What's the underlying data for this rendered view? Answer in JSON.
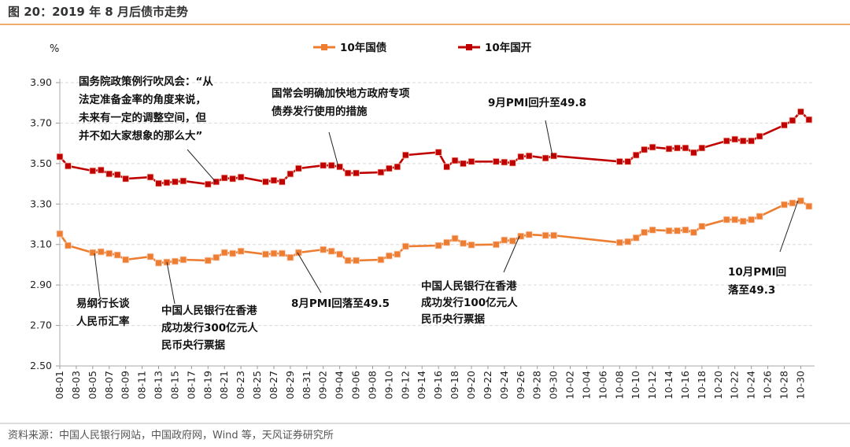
{
  "title": "图 20：2019 年 8 月后债市走势",
  "source": "资料来源：中国人民银行网站，中国政府网，Wind 等，天风证券研究所",
  "colors": {
    "accent": "#e8913f",
    "govt_10y": "#ed7d31",
    "cdb_10y": "#c00000"
  },
  "chart_data": {
    "type": "line",
    "ylabel": "%",
    "ylim": [
      2.5,
      3.9
    ],
    "yticks": [
      "2.50",
      "2.70",
      "2.90",
      "3.10",
      "3.30",
      "3.50",
      "3.70",
      "3.90"
    ],
    "grid": "horizontal dashed",
    "legend_position": "top-center",
    "xticks": [
      "08-01",
      "08-03",
      "08-05",
      "08-07",
      "08-09",
      "08-11",
      "08-13",
      "08-15",
      "08-17",
      "08-19",
      "08-21",
      "08-23",
      "08-25",
      "08-27",
      "08-29",
      "08-31",
      "09-02",
      "09-04",
      "09-06",
      "09-08",
      "09-10",
      "09-12",
      "09-14",
      "09-16",
      "09-18",
      "09-20",
      "09-22",
      "09-24",
      "09-26",
      "09-28",
      "09-30",
      "10-02",
      "10-04",
      "10-06",
      "10-08",
      "10-10",
      "10-12",
      "10-14",
      "10-16",
      "10-18",
      "10-20",
      "10-22",
      "10-24",
      "10-26",
      "10-28",
      "10-30"
    ],
    "x": [
      "08-01",
      "08-02",
      "08-05",
      "08-06",
      "08-07",
      "08-08",
      "08-09",
      "08-12",
      "08-13",
      "08-14",
      "08-15",
      "08-16",
      "08-19",
      "08-20",
      "08-21",
      "08-22",
      "08-23",
      "08-26",
      "08-27",
      "08-28",
      "08-29",
      "08-30",
      "09-02",
      "09-03",
      "09-04",
      "09-05",
      "09-06",
      "09-09",
      "09-10",
      "09-11",
      "09-12",
      "09-16",
      "09-17",
      "09-18",
      "09-19",
      "09-20",
      "09-23",
      "09-24",
      "09-25",
      "09-26",
      "09-27",
      "09-29",
      "09-30",
      "10-08",
      "10-09",
      "10-10",
      "10-11",
      "10-12",
      "10-14",
      "10-15",
      "10-16",
      "10-17",
      "10-18",
      "10-21",
      "10-22",
      "10-23",
      "10-24",
      "10-25",
      "10-28",
      "10-29",
      "10-30",
      "10-31"
    ],
    "series": [
      {
        "name": "10年国债",
        "values": [
          3.153,
          3.095,
          3.06,
          3.064,
          3.056,
          3.048,
          3.025,
          3.04,
          3.009,
          3.013,
          3.017,
          3.025,
          3.021,
          3.036,
          3.06,
          3.056,
          3.067,
          3.052,
          3.056,
          3.056,
          3.036,
          3.06,
          3.075,
          3.067,
          3.052,
          3.021,
          3.021,
          3.025,
          3.044,
          3.052,
          3.091,
          3.095,
          3.11,
          3.13,
          3.106,
          3.098,
          3.1,
          3.122,
          3.118,
          3.141,
          3.149,
          3.145,
          3.145,
          3.11,
          3.114,
          3.133,
          3.16,
          3.172,
          3.168,
          3.168,
          3.172,
          3.16,
          3.19,
          3.223,
          3.223,
          3.215,
          3.223,
          3.239,
          3.297,
          3.305,
          3.316,
          3.289
        ]
      },
      {
        "name": "10年国开",
        "values": [
          3.534,
          3.488,
          3.464,
          3.468,
          3.449,
          3.445,
          3.425,
          3.433,
          3.402,
          3.406,
          3.41,
          3.414,
          3.398,
          3.41,
          3.429,
          3.425,
          3.433,
          3.41,
          3.417,
          3.41,
          3.449,
          3.476,
          3.491,
          3.491,
          3.484,
          3.453,
          3.453,
          3.457,
          3.476,
          3.484,
          3.542,
          3.556,
          3.484,
          3.515,
          3.5,
          3.51,
          3.51,
          3.507,
          3.503,
          3.534,
          3.538,
          3.527,
          3.538,
          3.51,
          3.51,
          3.542,
          3.569,
          3.581,
          3.573,
          3.577,
          3.577,
          3.554,
          3.577,
          3.612,
          3.62,
          3.612,
          3.612,
          3.635,
          3.69,
          3.713,
          3.756,
          3.717
        ]
      }
    ],
    "annotations": [
      {
        "lines": [
          "国务院政策例行吹风会：“从",
          "法定准备金率的角度来说，",
          "未来有一定的调整空间，但",
          "并不如大家想象的那么大”"
        ]
      },
      {
        "lines": [
          "国常会明确加快地方政府专项",
          "债券发行使用的措施"
        ]
      },
      {
        "lines": [
          "9月PMI回升至49.8"
        ]
      },
      {
        "lines": [
          "易纲行长谈",
          "人民币汇率"
        ]
      },
      {
        "lines": [
          "中国人民银行在香港",
          "成功发行300亿元人",
          "民币央行票据"
        ]
      },
      {
        "lines": [
          "8月PMI回落至49.5"
        ]
      },
      {
        "lines": [
          "中国人民银行在香港",
          "成功发行100亿元人",
          "民币央行票据"
        ]
      },
      {
        "lines": [
          "10月PMI回",
          "落至49.3"
        ]
      }
    ]
  }
}
